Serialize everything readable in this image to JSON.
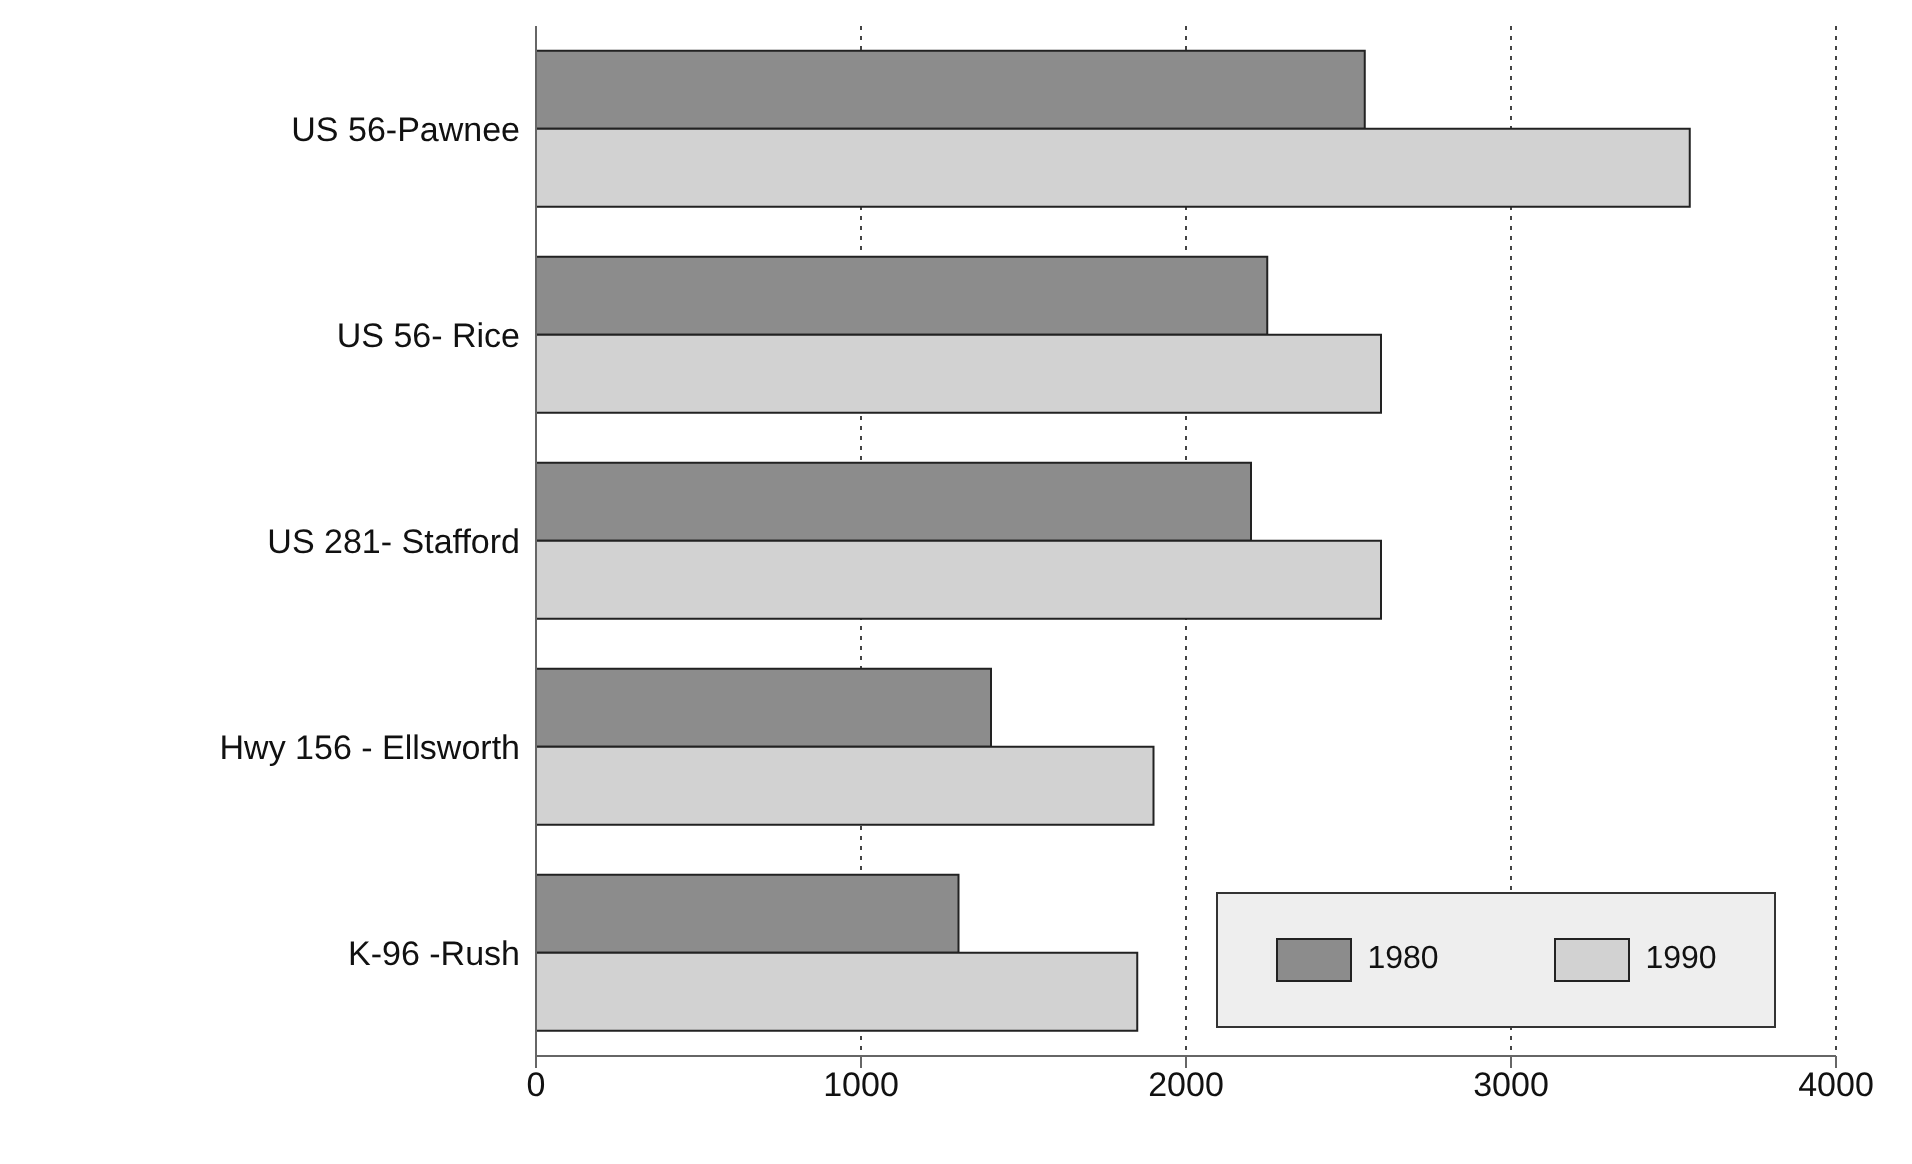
{
  "chart_data": {
    "type": "bar",
    "orientation": "horizontal",
    "categories": [
      "US 56-Pawnee",
      "US 56- Rice",
      "US 281- Stafford",
      "Hwy 156 - Ellsworth",
      "K-96 -Rush"
    ],
    "series": [
      {
        "name": "1980",
        "color": "#8c8c8c",
        "values": [
          2550,
          2250,
          2200,
          1400,
          1300
        ]
      },
      {
        "name": "1990",
        "color": "#d2d2d2",
        "values": [
          3550,
          2600,
          2600,
          1900,
          1850
        ]
      }
    ],
    "xlim": [
      0,
      4000
    ],
    "xticks": [
      0,
      1000,
      2000,
      3000,
      4000
    ],
    "grid": "x",
    "legend": "bottom right"
  }
}
